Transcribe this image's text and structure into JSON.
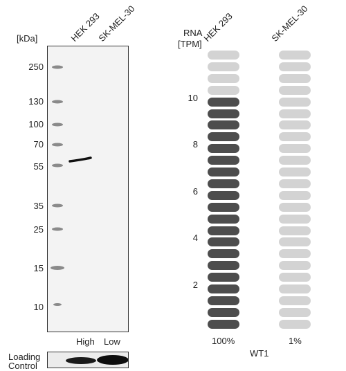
{
  "blot": {
    "kda_label": "[kDa]",
    "lane_headers": [
      "HEK 293",
      "SK-MEL-30"
    ],
    "markers": [
      "250",
      "130",
      "100",
      "70",
      "55",
      "35",
      "25",
      "15",
      "10"
    ],
    "lane_levels": [
      "High",
      "Low"
    ],
    "loading_control_label_1": "Loading",
    "loading_control_label_2": "Control"
  },
  "rna": {
    "header_1": "RNA",
    "header_2": "[TPM]",
    "columns": [
      "HEK 293",
      "SK-MEL-30"
    ],
    "y_ticks": [
      "10",
      "8",
      "6",
      "4",
      "2"
    ],
    "percents": [
      "100%",
      "1%"
    ],
    "gene": "WT1",
    "colors": {
      "filled": "#4d4d4d",
      "empty": "#d3d3d3"
    }
  },
  "chart_data": {
    "type": "bar",
    "title": "",
    "ylabel": "RNA [TPM]",
    "categories": [
      "HEK 293",
      "SK-MEL-30"
    ],
    "values": [
      100,
      1
    ],
    "unit": "%",
    "gene": "WT1"
  }
}
